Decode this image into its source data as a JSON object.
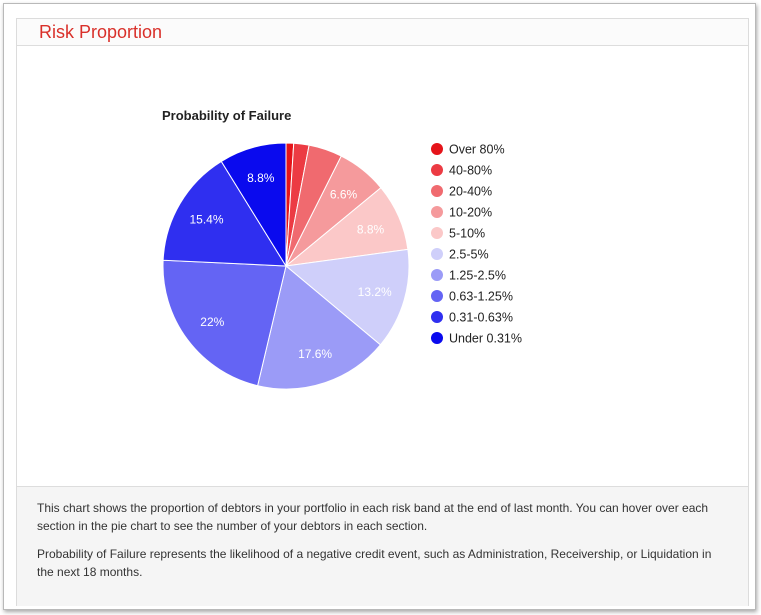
{
  "panel": {
    "title": "Risk Proportion"
  },
  "footer": {
    "paragraph1": "This chart shows the proportion of debtors in your portfolio in each risk band at the end of last month. You can hover over each section in the pie chart to see the number of your debtors in each section.",
    "paragraph2": "Probability of Failure represents the likelihood of a negative credit event, such as Administration, Receivership, or Liquidation in the next 18 months."
  },
  "chart_data": {
    "type": "pie",
    "title": "Probability of Failure",
    "legend_position": "right",
    "slices": [
      {
        "label": "Over 80%",
        "value": 1.0,
        "display": "",
        "color": "#e5141a",
        "label_color": "#ffffff"
      },
      {
        "label": "40-80%",
        "value": 2.0,
        "display": "",
        "color": "#ec3b43",
        "label_color": "#ffffff"
      },
      {
        "label": "20-40%",
        "value": 4.4,
        "display": "",
        "color": "#f06a6f",
        "label_color": "#ffffff"
      },
      {
        "label": "10-20%",
        "value": 6.6,
        "display": "6.6%",
        "color": "#f59a9c",
        "label_color": "#ffffff"
      },
      {
        "label": "5-10%",
        "value": 8.8,
        "display": "8.8%",
        "color": "#fbc8c8",
        "label_color": "#ffffff"
      },
      {
        "label": "2.5-5%",
        "value": 13.2,
        "display": "13.2%",
        "color": "#cfcffa",
        "label_color": "#ffffff"
      },
      {
        "label": "1.25-2.5%",
        "value": 17.6,
        "display": "17.6%",
        "color": "#9b9bf7",
        "label_color": "#ffffff"
      },
      {
        "label": "0.63-1.25%",
        "value": 22.0,
        "display": "22%",
        "color": "#6464f4",
        "label_color": "#ffffff"
      },
      {
        "label": "0.31-0.63%",
        "value": 15.4,
        "display": "15.4%",
        "color": "#2f2ff0",
        "label_color": "#ffffff"
      },
      {
        "label": "Under 0.31%",
        "value": 8.8,
        "display": "8.8%",
        "color": "#0a0aee",
        "label_color": "#ffffff"
      }
    ]
  }
}
